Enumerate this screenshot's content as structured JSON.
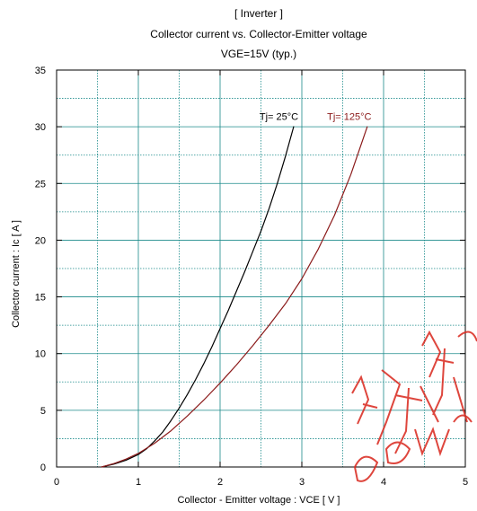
{
  "chart_data": {
    "type": "line",
    "title": "[ Inverter ]",
    "subtitle": [
      "Collector current  vs.  Collector-Emitter voltage",
      "VGE=15V  (typ.)"
    ],
    "xlabel": "Collector - Emitter voltage  :  VCE  [ V ]",
    "ylabel": "Collector current  :  Ic  [ A ]",
    "xlim": [
      0,
      5
    ],
    "ylim": [
      0,
      35
    ],
    "xticks": [
      0,
      1,
      2,
      3,
      4,
      5
    ],
    "xtick_labels": [
      "0",
      "1",
      "2",
      "3",
      "4",
      "5"
    ],
    "yticks": [
      0,
      5,
      10,
      15,
      20,
      25,
      30,
      35
    ],
    "ytick_labels": [
      "0",
      "5",
      "10",
      "15",
      "20",
      "25",
      "30",
      "35"
    ],
    "grid": true,
    "series": [
      {
        "name": "Tj= 25°C",
        "color": "#000000",
        "x": [
          0.55,
          0.7,
          0.85,
          1.0,
          1.1,
          1.2,
          1.3,
          1.4,
          1.5,
          1.6,
          1.7,
          1.8,
          1.9,
          2.0,
          2.1,
          2.2,
          2.3,
          2.4,
          2.5,
          2.6,
          2.7,
          2.8,
          2.9
        ],
        "y": [
          0.0,
          0.25,
          0.6,
          1.1,
          1.6,
          2.3,
          3.1,
          4.1,
          5.2,
          6.4,
          7.7,
          9.1,
          10.6,
          12.2,
          13.8,
          15.5,
          17.2,
          19.0,
          20.8,
          22.8,
          25.0,
          27.4,
          30.0
        ]
      },
      {
        "name": "Tj= 125°C",
        "color": "#8b1a1a",
        "x": [
          0.55,
          0.7,
          0.85,
          1.0,
          1.2,
          1.4,
          1.6,
          1.8,
          2.0,
          2.2,
          2.4,
          2.6,
          2.8,
          3.0,
          3.2,
          3.4,
          3.6,
          3.8
        ],
        "y": [
          0.0,
          0.3,
          0.7,
          1.2,
          2.1,
          3.2,
          4.5,
          5.9,
          7.4,
          9.0,
          10.7,
          12.5,
          14.4,
          16.6,
          19.2,
          22.2,
          25.8,
          30.0
        ]
      }
    ],
    "annotations": [
      {
        "text": "Tj= 25°C",
        "x": 2.72,
        "y": 30.6,
        "color": "#000000"
      },
      {
        "text": "Tj= 125°C",
        "x": 3.58,
        "y": 30.6,
        "color": "#8b1a1a"
      }
    ]
  },
  "colors": {
    "grid": "#1a8a8a",
    "axis": "#000000",
    "watermark": "#d9261c"
  }
}
